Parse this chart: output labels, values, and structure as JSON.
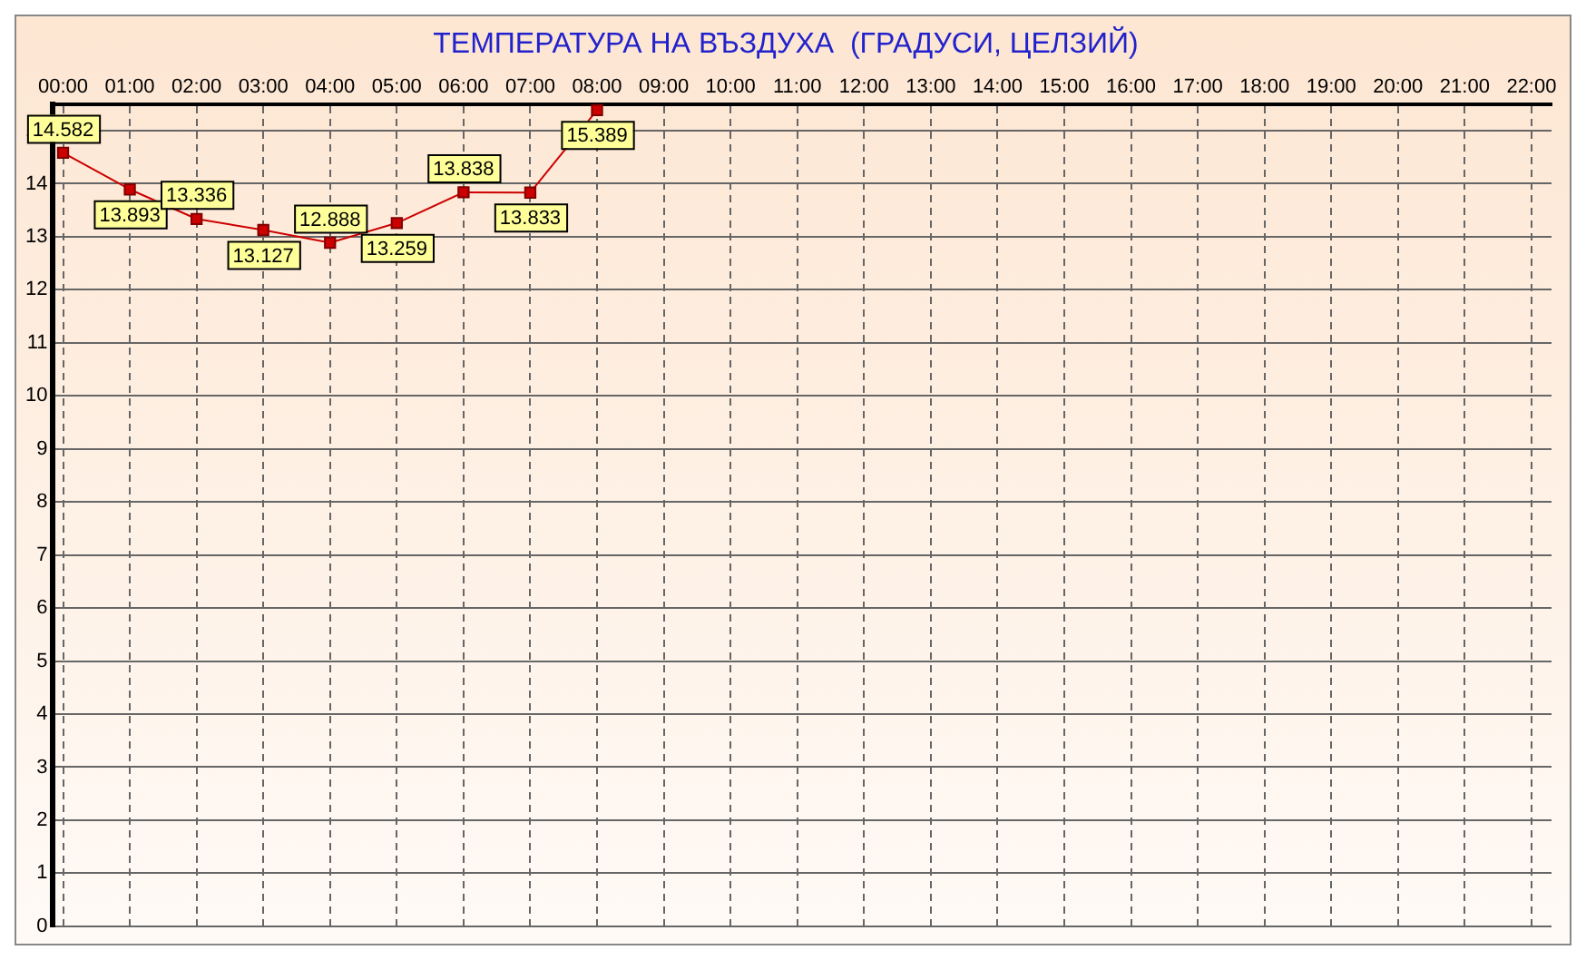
{
  "chart_data": {
    "type": "line",
    "title": "ТЕМПЕРАТУРА НА ВЪЗДУХА  (ГРАДУСИ, ЦЕЛЗИЙ)",
    "x": [
      0,
      1,
      2,
      3,
      4,
      5,
      6,
      7,
      8
    ],
    "series": [
      {
        "color": "#cc0000",
        "values": [
          14.582,
          13.893,
          13.336,
          13.127,
          12.888,
          13.259,
          13.838,
          13.833,
          15.389
        ]
      }
    ],
    "xlim": [
      -0.15,
      22.3
    ],
    "xticks": [
      {
        "value": 0,
        "label": "00:00"
      },
      {
        "value": 1,
        "label": "01:00"
      },
      {
        "value": 2,
        "label": "02:00"
      },
      {
        "value": 3,
        "label": "03:00"
      },
      {
        "value": 4,
        "label": "04:00"
      },
      {
        "value": 5,
        "label": "05:00"
      },
      {
        "value": 6,
        "label": "06:00"
      },
      {
        "value": 7,
        "label": "07:00"
      },
      {
        "value": 8,
        "label": "08:00"
      },
      {
        "value": 9,
        "label": "09:00"
      },
      {
        "value": 10,
        "label": "10:00"
      },
      {
        "value": 11,
        "label": "11:00"
      },
      {
        "value": 12,
        "label": "12:00"
      },
      {
        "value": 13,
        "label": "13:00"
      },
      {
        "value": 14,
        "label": "14:00"
      },
      {
        "value": 15,
        "label": "15:00"
      },
      {
        "value": 16,
        "label": "16:00"
      },
      {
        "value": 17,
        "label": "17:00"
      },
      {
        "value": 18,
        "label": "18:00"
      },
      {
        "value": 19,
        "label": "19:00"
      },
      {
        "value": 20,
        "label": "20:00"
      },
      {
        "value": 21,
        "label": "21:00"
      },
      {
        "value": 22,
        "label": "22:00"
      }
    ],
    "ylim": [
      0,
      15.5
    ],
    "yticks": [
      0,
      1,
      2,
      3,
      4,
      5,
      6,
      7,
      8,
      9,
      10,
      11,
      12,
      13,
      14,
      15
    ],
    "grid": true,
    "legend": false,
    "marker": "square",
    "line_style": "solid",
    "data_labels": true
  }
}
